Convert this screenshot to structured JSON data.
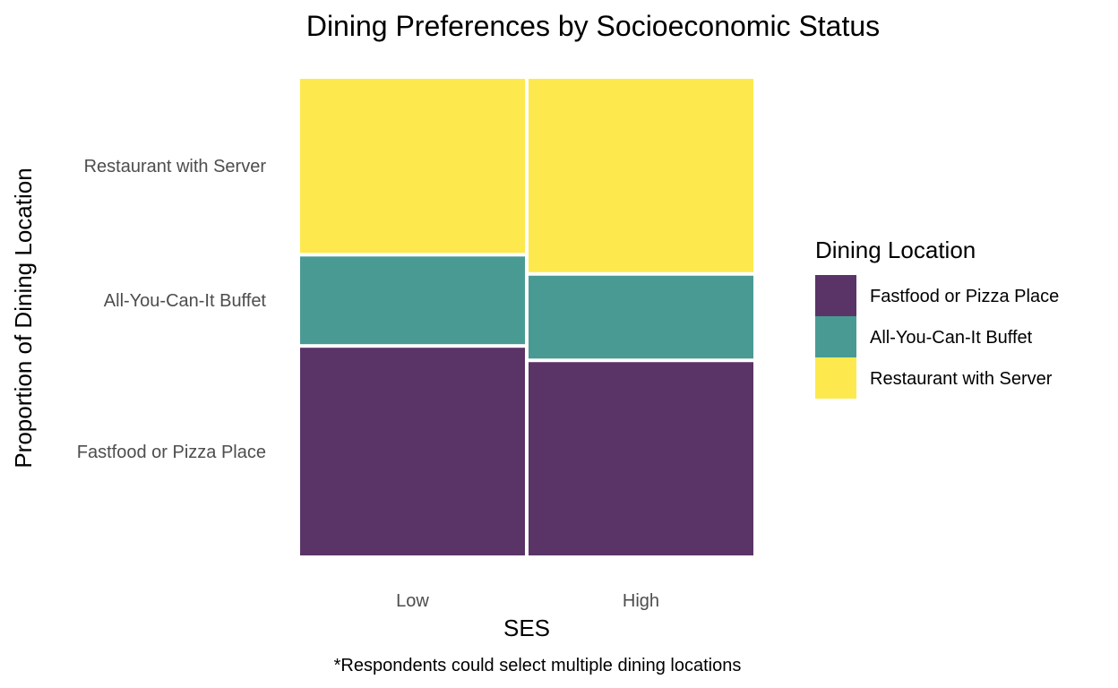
{
  "chart_data": {
    "type": "mosaic",
    "title": "Dining Preferences by Socioeconomic Status",
    "xlabel": "SES",
    "ylabel": "Proportion of Dining Location",
    "caption": "*Respondents could select multiple dining locations",
    "categories": [
      "Low",
      "High"
    ],
    "category_widths": [
      0.5,
      0.5
    ],
    "series": [
      {
        "name": "Fastfood or Pizza Place",
        "values": [
          0.44,
          0.41
        ],
        "color": "#5b3467"
      },
      {
        "name": "All-You-Can-It Buffet",
        "values": [
          0.19,
          0.18
        ],
        "color": "#4a9a94"
      },
      {
        "name": "Restaurant with Server",
        "values": [
          0.37,
          0.41
        ],
        "color": "#fde94e"
      }
    ],
    "y_tick_labels": [
      "Fastfood or Pizza Place",
      "All-You-Can-It Buffet",
      "Restaurant with Server"
    ],
    "legend": {
      "title": "Dining Location",
      "items": [
        "Fastfood or Pizza Place",
        "All-You-Can-It Buffet",
        "Restaurant with Server"
      ],
      "placement": "right"
    },
    "grid": false
  }
}
